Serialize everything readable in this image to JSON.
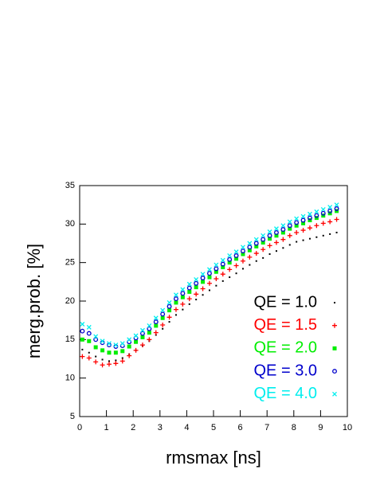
{
  "chart_data": {
    "type": "scatter",
    "x_label": "rmsmax [ns]",
    "y_label": "merg.prob. [%]",
    "xlim": [
      0,
      10
    ],
    "ylim": [
      5,
      35
    ],
    "xticks": [
      0,
      1,
      2,
      3,
      4,
      5,
      6,
      7,
      8,
      9,
      10
    ],
    "yticks": [
      5,
      10,
      15,
      20,
      25,
      30,
      35
    ],
    "legend_position": "lower right",
    "x": [
      0.1,
      0.35,
      0.6,
      0.85,
      1.1,
      1.35,
      1.6,
      1.85,
      2.1,
      2.35,
      2.6,
      2.85,
      3.1,
      3.35,
      3.6,
      3.85,
      4.1,
      4.35,
      4.6,
      4.85,
      5.1,
      5.35,
      5.6,
      5.85,
      6.1,
      6.35,
      6.6,
      6.85,
      7.1,
      7.35,
      7.6,
      7.85,
      8.1,
      8.35,
      8.6,
      8.85,
      9.1,
      9.35,
      9.6
    ],
    "series": [
      {
        "name": "QE = 1.0",
        "color": "#000000",
        "marker": "dot",
        "values": [
          13.7,
          13.3,
          12.8,
          12.4,
          12.2,
          12.3,
          12.6,
          13.1,
          13.6,
          14.2,
          14.8,
          15.6,
          16.4,
          17.3,
          18.2,
          18.9,
          19.6,
          20.2,
          20.8,
          21.4,
          22.0,
          22.6,
          23.1,
          23.6,
          24.2,
          24.7,
          25.2,
          25.6,
          26.1,
          26.5,
          26.9,
          27.3,
          27.7,
          27.9,
          28.1,
          28.3,
          28.5,
          28.7,
          28.9
        ]
      },
      {
        "name": "QE = 1.5",
        "color": "#ff0000",
        "marker": "plus",
        "values": [
          12.8,
          12.6,
          12.1,
          11.7,
          11.8,
          11.9,
          12.2,
          12.9,
          13.6,
          14.3,
          15.0,
          15.9,
          16.9,
          17.9,
          18.9,
          19.6,
          20.3,
          20.9,
          21.6,
          22.3,
          22.9,
          23.5,
          24.1,
          24.6,
          25.2,
          25.7,
          26.2,
          26.7,
          27.2,
          27.6,
          28.0,
          28.5,
          28.9,
          29.2,
          29.5,
          29.8,
          30.1,
          30.3,
          30.6
        ]
      },
      {
        "name": "QE = 2.0",
        "color": "#00ee00",
        "marker": "square",
        "values": [
          15.0,
          14.8,
          14.0,
          13.6,
          13.3,
          13.3,
          13.5,
          14.1,
          14.7,
          15.3,
          15.9,
          16.8,
          17.8,
          18.8,
          19.8,
          20.5,
          21.2,
          21.8,
          22.5,
          23.1,
          23.8,
          24.4,
          25.0,
          25.5,
          26.1,
          26.6,
          27.1,
          27.6,
          28.1,
          28.5,
          28.9,
          29.4,
          29.8,
          30.1,
          30.5,
          30.8,
          31.1,
          31.4,
          31.7
        ]
      },
      {
        "name": "QE = 3.0",
        "color": "#0000cc",
        "marker": "circle",
        "values": [
          16.1,
          15.8,
          15.0,
          14.6,
          14.3,
          14.1,
          14.2,
          14.7,
          15.2,
          15.8,
          16.4,
          17.3,
          18.3,
          19.3,
          20.3,
          21.0,
          21.7,
          22.3,
          23.0,
          23.6,
          24.2,
          24.8,
          25.4,
          25.9,
          26.5,
          27.0,
          27.5,
          28.0,
          28.5,
          28.9,
          29.3,
          29.8,
          30.2,
          30.5,
          30.8,
          31.1,
          31.4,
          31.7,
          32.0
        ]
      },
      {
        "name": "QE = 4.0",
        "color": "#00eeee",
        "marker": "cross",
        "values": [
          17.0,
          16.6,
          15.4,
          14.8,
          14.5,
          14.3,
          14.5,
          15.0,
          15.5,
          16.2,
          16.8,
          17.8,
          18.8,
          19.8,
          20.8,
          21.5,
          22.2,
          22.8,
          23.5,
          24.1,
          24.7,
          25.3,
          25.9,
          26.4,
          27.0,
          27.5,
          28.0,
          28.5,
          29.0,
          29.4,
          29.8,
          30.3,
          30.7,
          31.0,
          31.3,
          31.6,
          31.9,
          32.2,
          32.5
        ]
      }
    ]
  }
}
